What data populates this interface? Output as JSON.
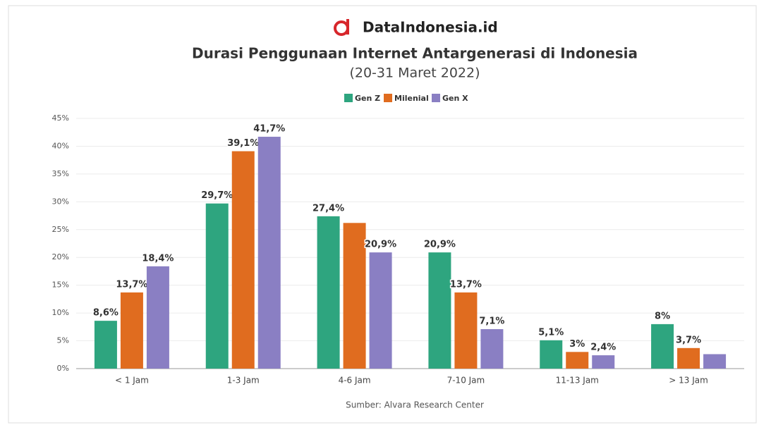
{
  "brand": "DataIndonesia.id",
  "chart_data": {
    "type": "bar",
    "title": "Durasi Penggunaan Internet Antargenerasi di Indonesia",
    "subtitle": "(20-31 Maret 2022)",
    "source": "Sumber: Alvara Research Center",
    "categories": [
      "< 1 Jam",
      "1-3 Jam",
      "4-6 Jam",
      "7-10 Jam",
      "11-13 Jam",
      "> 13 Jam"
    ],
    "series": [
      {
        "name": "Gen Z",
        "color": "#2ea57f",
        "values": [
          8.6,
          29.7,
          27.4,
          20.9,
          5.1,
          8
        ],
        "value_labels": [
          "8,6%",
          "29,7%",
          "27,4%",
          "20,9%",
          "5,1%",
          "8%"
        ]
      },
      {
        "name": "Milenial",
        "color": "#e06c1f",
        "values": [
          13.7,
          39.1,
          26.2,
          13.7,
          3,
          3.7
        ],
        "value_labels": [
          "13,7%",
          "39,1%",
          null,
          "13,7%",
          "3%",
          "3,7%"
        ]
      },
      {
        "name": "Gen X",
        "color": "#8a7fc3",
        "values": [
          18.4,
          41.7,
          20.9,
          7.1,
          2.4,
          2.6
        ],
        "value_labels": [
          "18,4%",
          "41,7%",
          "20,9%",
          "7,1%",
          "2,4%",
          null
        ]
      }
    ],
    "ylim": [
      0,
      45
    ],
    "yticks": [
      {
        "value": 0,
        "label": "0%"
      },
      {
        "value": 5,
        "label": "5%"
      },
      {
        "value": 10,
        "label": "10%"
      },
      {
        "value": 15,
        "label": "15%"
      },
      {
        "value": 20,
        "label": "20%"
      },
      {
        "value": 25,
        "label": "25%"
      },
      {
        "value": 30,
        "label": "30%"
      },
      {
        "value": 35,
        "label": "35%"
      },
      {
        "value": 40,
        "label": "40%"
      },
      {
        "value": 45,
        "label": "45%"
      }
    ],
    "grid": true,
    "legend": "top"
  }
}
